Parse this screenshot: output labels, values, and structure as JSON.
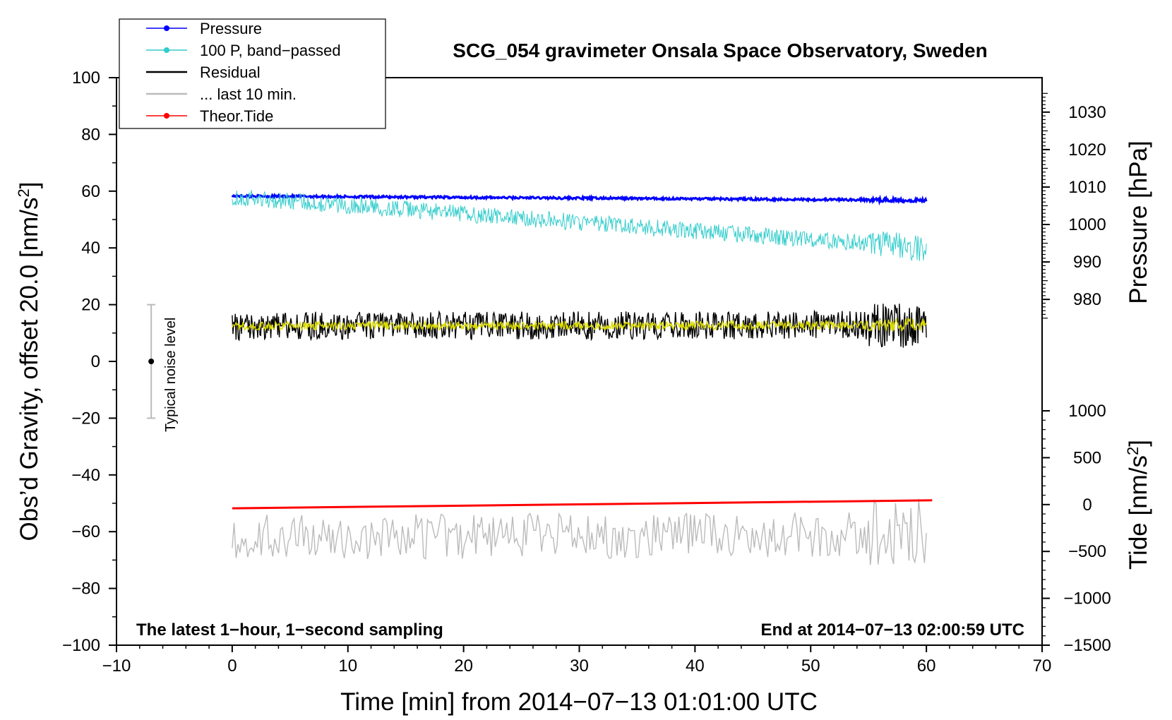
{
  "chart_data": {
    "type": "line",
    "title": "SCG_054 gravimeter Onsala Space Observatory, Sweden",
    "xlabel": "Time [min] from 2014−07−13 01:01:00 UTC",
    "ylabel": "Obs’d Gravity, offset 20.0 [nm/s",
    "ylabel_sup": "2",
    "ylabel_end": "]",
    "y2label": "Pressure [hPa]",
    "y3label": "Tide [nm/s",
    "y3label_sup": "2",
    "y3label_end": "]",
    "xlim": [
      -10,
      70
    ],
    "ylim": [
      -100,
      100
    ],
    "pressure_lim": [
      974,
      1036
    ],
    "tide_lim": [
      -1500,
      1000
    ],
    "x_ticks": [
      -10,
      0,
      10,
      20,
      30,
      40,
      50,
      60,
      70
    ],
    "x_tick_labels": [
      "−10",
      "0",
      "10",
      "20",
      "30",
      "40",
      "50",
      "60",
      "70"
    ],
    "y_ticks": [
      100,
      80,
      60,
      40,
      20,
      0,
      -20,
      -40,
      -60,
      -80,
      -100
    ],
    "y_tick_labels": [
      "100",
      "80",
      "60",
      "40",
      "20",
      "0",
      "−20",
      "−40",
      "−60",
      "−80",
      "−100"
    ],
    "pressure_ticks": [
      980,
      990,
      1000,
      1010,
      1020,
      1030
    ],
    "pressure_tick_labels": [
      "980",
      "990",
      "1000",
      "1010",
      "1020",
      "1030"
    ],
    "tide_ticks": [
      1000,
      500,
      0,
      -500,
      -1000,
      -1500
    ],
    "tide_tick_labels": [
      "1000",
      "500",
      "0",
      "−500",
      "−1000",
      "−1500"
    ],
    "legend": [
      {
        "label": "Pressure",
        "color": "#0000ff",
        "marker": true
      },
      {
        "label": "100 P, band−passed",
        "color": "#33cccc",
        "marker": true
      },
      {
        "label": "Residual",
        "color": "#000000",
        "marker": false
      },
      {
        "label": "... last 10 min.",
        "color": "#bbbbbb",
        "marker": false
      },
      {
        "label": "Theor.Tide",
        "color": "#ff0000",
        "marker": true
      }
    ],
    "legend_position": "top-left",
    "noise_label": "Typical noise level",
    "noise_indicator": {
      "x": -7,
      "center": 0,
      "low": -20,
      "high": 20
    },
    "footer_left": "The latest 1−hour, 1−second sampling",
    "footer_right": "End at 2014−07−13 02:00:59 UTC",
    "series": [
      {
        "name": "Pressure",
        "axis": "gravity",
        "color": "#0000ff",
        "start": [
          0,
          58.3
        ],
        "end": [
          60,
          56.8
        ],
        "noise": 0.4
      },
      {
        "name": "100 P, band−passed",
        "axis": "gravity",
        "color": "#33cccc",
        "start": [
          0,
          58.0
        ],
        "end": [
          60,
          40.0
        ],
        "noise": 3.0
      },
      {
        "name": "Residual",
        "axis": "gravity",
        "color": "#000000",
        "start": [
          0,
          12.5
        ],
        "end": [
          60,
          12.8
        ],
        "noise": 5.0
      },
      {
        "name": "Residual smoothed",
        "axis": "gravity",
        "color": "#dddd00",
        "start": [
          0,
          12.5
        ],
        "end": [
          60,
          12.8
        ],
        "noise": 1.5
      },
      {
        "name": "... last 10 min.",
        "axis": "gravity",
        "color": "#bbbbbb",
        "start": [
          0,
          -62
        ],
        "end": [
          60,
          -61
        ],
        "noise": 8.0
      },
      {
        "name": "Theor.Tide",
        "axis": "tide",
        "color": "#ff0000",
        "start": [
          0,
          -40
        ],
        "end": [
          60.5,
          45
        ],
        "noise": 0
      }
    ]
  }
}
